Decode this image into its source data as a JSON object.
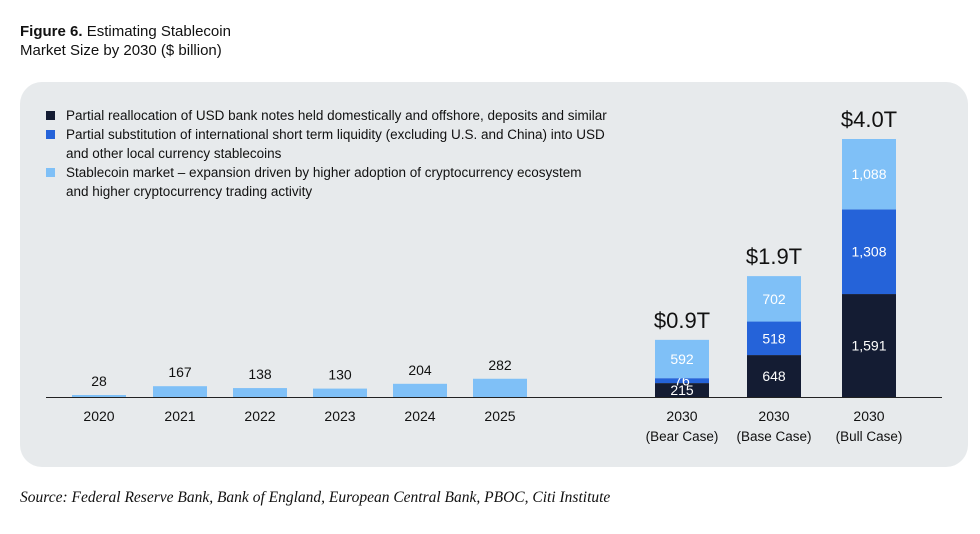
{
  "figure": {
    "label": "Figure 6.",
    "title_line1": "Estimating Stablecoin",
    "title_line2": "Market Size by 2030 ($ billion)"
  },
  "source": "Source: Federal Reserve Bank, Bank of England, European Central Bank, PBOC, Citi Institute",
  "colors": {
    "dark": "#141c33",
    "blue": "#2563d9",
    "light": "#7fc0f7",
    "panel": "#e7eaec"
  },
  "chart_data": {
    "type": "bar",
    "stacked": true,
    "unit": "$ billion",
    "legend": [
      {
        "name": "Partial reallocation of USD bank notes held domestically and offshore, deposits and similar",
        "color": "#141c33"
      },
      {
        "name": "Partial substitution of international short term liquidity (excluding U.S. and China) into USD and other local currency stablecoins",
        "color": "#2563d9"
      },
      {
        "name": "Stablecoin market – expansion driven by higher adoption of cryptocurrency ecosystem and higher cryptocurrency trading activity",
        "color": "#7fc0f7"
      }
    ],
    "legend_line1": [
      "Partial reallocation of USD bank notes held domestically and offshore, deposits and similar",
      "Partial substitution of international short term liquidity (excluding U.S. and China) into USD",
      "Stablecoin market – expansion driven by higher adoption of cryptocurrency ecosystem"
    ],
    "legend_line2": [
      "",
      "and other local currency stablecoins",
      "and higher cryptocurrency trading activity"
    ],
    "categories": [
      {
        "line1": "2020",
        "line2": ""
      },
      {
        "line1": "2021",
        "line2": ""
      },
      {
        "line1": "2022",
        "line2": ""
      },
      {
        "line1": "2023",
        "line2": ""
      },
      {
        "line1": "2024",
        "line2": ""
      },
      {
        "line1": "2025",
        "line2": ""
      },
      {
        "line1": "2030",
        "line2": "(Bear Case)"
      },
      {
        "line1": "2030",
        "line2": "(Base Case)"
      },
      {
        "line1": "2030",
        "line2": "(Bull Case)"
      }
    ],
    "bars": [
      {
        "segments": [
          {
            "series": 2,
            "value": 28
          }
        ]
      },
      {
        "segments": [
          {
            "series": 2,
            "value": 167
          }
        ]
      },
      {
        "segments": [
          {
            "series": 2,
            "value": 138
          }
        ]
      },
      {
        "segments": [
          {
            "series": 2,
            "value": 130
          }
        ]
      },
      {
        "segments": [
          {
            "series": 2,
            "value": 204
          }
        ]
      },
      {
        "segments": [
          {
            "series": 2,
            "value": 282
          }
        ]
      },
      {
        "segments": [
          {
            "series": 0,
            "value": 215
          },
          {
            "series": 1,
            "value": 76
          },
          {
            "series": 2,
            "value": 592
          }
        ],
        "total_label": "$0.9T"
      },
      {
        "segments": [
          {
            "series": 0,
            "value": 648
          },
          {
            "series": 1,
            "value": 518
          },
          {
            "series": 2,
            "value": 702
          }
        ],
        "total_label": "$1.9T"
      },
      {
        "segments": [
          {
            "series": 0,
            "value": 1591
          },
          {
            "series": 1,
            "value": 1308
          },
          {
            "series": 2,
            "value": 1088
          }
        ],
        "total_label": "$4.0T"
      }
    ],
    "ylim": [
      0,
      4000
    ],
    "grid": false
  }
}
